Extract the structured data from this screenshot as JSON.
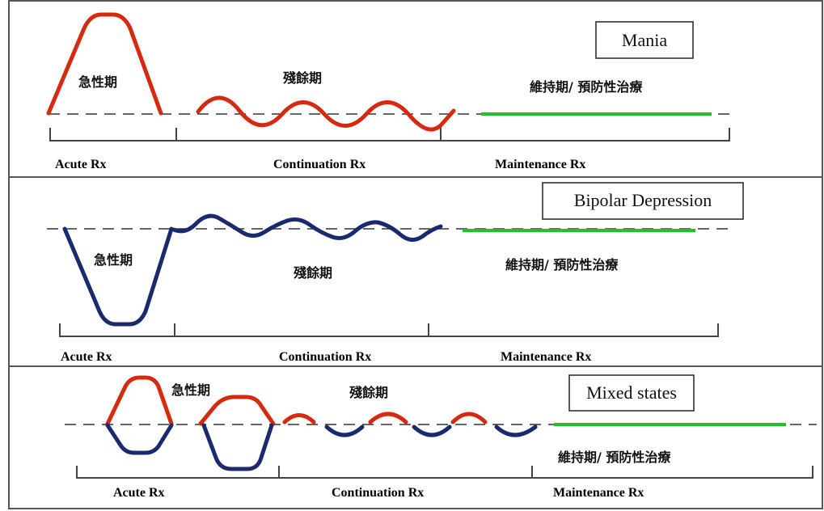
{
  "colors": {
    "mania": "#d62a10",
    "depression": "#1a2a6e",
    "maintenance": "#22c02a",
    "baseline": "#333333",
    "frame": "#555555"
  },
  "panels": [
    {
      "title": "Mania",
      "labels": {
        "acute": "急性期",
        "continuation": "殘餘期",
        "maintenance": "維持期/ 預防性治療"
      },
      "phases": {
        "acute": "Acute Rx",
        "continuation": "Continuation Rx",
        "maintenance": "Maintenance Rx"
      }
    },
    {
      "title": "Bipolar Depression",
      "labels": {
        "acute": "急性期",
        "continuation": "殘餘期",
        "maintenance": "維持期/ 預防性治療"
      },
      "phases": {
        "acute": "Acute Rx",
        "continuation": "Continuation Rx",
        "maintenance": "Maintenance Rx"
      }
    },
    {
      "title": "Mixed states",
      "labels": {
        "acute": "急性期",
        "continuation": "殘餘期",
        "maintenance": "維持期/ 預防性治療"
      },
      "phases": {
        "acute": "Acute Rx",
        "continuation": "Continuation Rx",
        "maintenance": "Maintenance Rx"
      }
    }
  ]
}
